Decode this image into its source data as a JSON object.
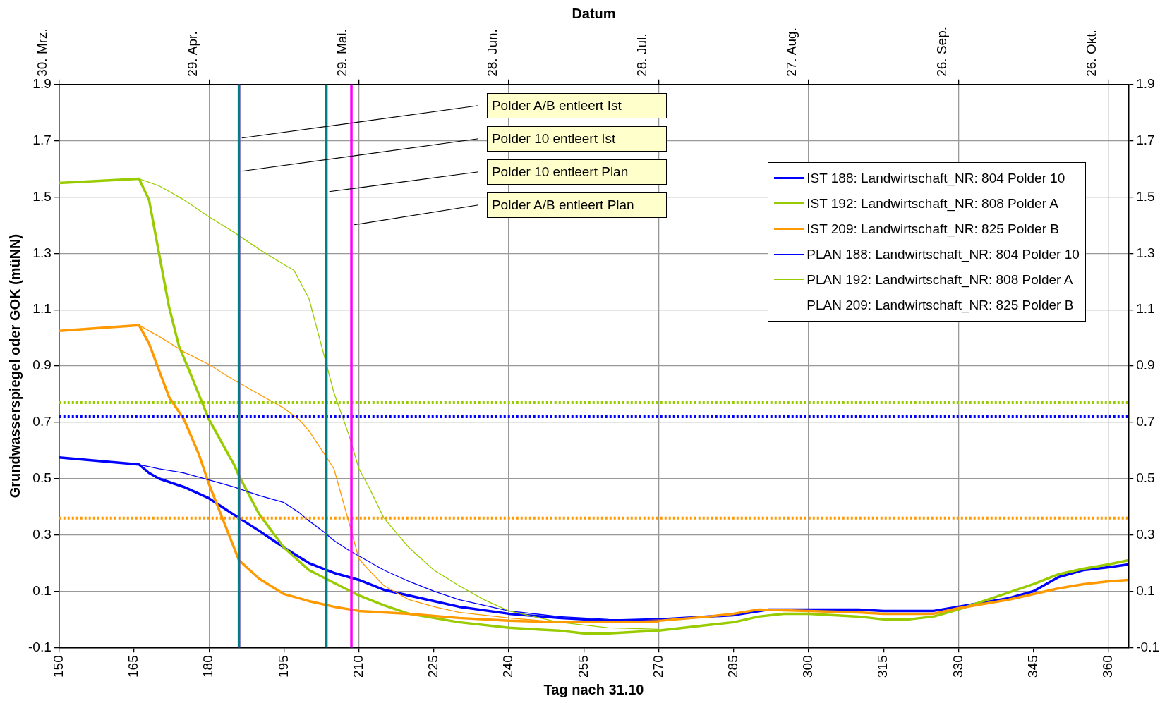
{
  "chart_data": {
    "type": "line",
    "x2label": "Datum",
    "xlabel": "Tag nach 31.10",
    "ylabel": "Grundwasserspiegel oder GOK (müNN)",
    "xlim": [
      150,
      364
    ],
    "xticks": [
      150,
      165,
      180,
      195,
      210,
      225,
      240,
      255,
      270,
      285,
      300,
      315,
      330,
      345,
      360
    ],
    "x2lim": [
      "--03-30",
      "--10-30"
    ],
    "x2ticks": [
      {
        "value": "--03-30",
        "label": "30. Mrz."
      },
      {
        "value": "--04-29",
        "label": "29. Apr."
      },
      {
        "value": "--05-29",
        "label": "29. Mai."
      },
      {
        "value": "--06-28",
        "label": "28. Jun."
      },
      {
        "value": "--07-28",
        "label": "28. Jul."
      },
      {
        "value": "--08-27",
        "label": "27. Aug."
      },
      {
        "value": "--09-26",
        "label": "26. Sep."
      },
      {
        "value": "--10-26",
        "label": "26. Okt."
      }
    ],
    "ylim": [
      -0.1,
      1.9
    ],
    "yticks": [
      -0.1,
      0.1,
      0.3,
      0.5,
      0.7,
      0.9,
      1.1,
      1.3,
      1.5,
      1.7,
      1.9
    ],
    "y2lim": [
      -0.1,
      1.9
    ],
    "y2ticks": [
      -0.1,
      0.1,
      0.3,
      0.5,
      0.7,
      0.9,
      1.1,
      1.3,
      1.5,
      1.7,
      1.9
    ],
    "grid": true,
    "legend": "top right",
    "line_style": "solid",
    "marker": "none",
    "series": [
      {
        "name": "IST 188: Landwirtschaft_NR: 804 Polder 10",
        "color": "#0000ff",
        "x": [
          150,
          166,
          168,
          170,
          175,
          180,
          183,
          186,
          190,
          195,
          200,
          205,
          210,
          215,
          220,
          225,
          230,
          240,
          250,
          255,
          260,
          270,
          285,
          292,
          300,
          310,
          315,
          325,
          330,
          340,
          345,
          350,
          355,
          360,
          364
        ],
        "values": [
          0.575,
          0.55,
          0.52,
          0.5,
          0.47,
          0.43,
          0.395,
          0.36,
          0.315,
          0.255,
          0.2,
          0.165,
          0.14,
          0.105,
          0.085,
          0.065,
          0.045,
          0.02,
          0.005,
          0,
          -0.005,
          0,
          0.015,
          0.035,
          0.035,
          0.035,
          0.03,
          0.03,
          0.045,
          0.075,
          0.1,
          0.15,
          0.175,
          0.185,
          0.195
        ]
      },
      {
        "name": "IST 192: Landwirtschaft_NR: 808 Polder A",
        "color": "#99cc00",
        "x": [
          150,
          166,
          168,
          170,
          172,
          174,
          176,
          180,
          185,
          186,
          190,
          195,
          200,
          205,
          210,
          215,
          220,
          225,
          230,
          240,
          250,
          255,
          260,
          270,
          280,
          285,
          290,
          295,
          300,
          310,
          315,
          320,
          325,
          330,
          335,
          340,
          345,
          350,
          355,
          360,
          364
        ],
        "values": [
          1.55,
          1.565,
          1.49,
          1.3,
          1.11,
          0.97,
          0.885,
          0.71,
          0.55,
          0.51,
          0.375,
          0.255,
          0.175,
          0.13,
          0.085,
          0.05,
          0.02,
          0.005,
          -0.01,
          -0.03,
          -0.04,
          -0.05,
          -0.05,
          -0.04,
          -0.02,
          -0.01,
          0.01,
          0.02,
          0.02,
          0.01,
          0,
          0,
          0.01,
          0.035,
          0.065,
          0.095,
          0.125,
          0.16,
          0.18,
          0.195,
          0.21
        ]
      },
      {
        "name": "IST 209: Landwirtschaft_NR: 825 Polder B",
        "color": "#ff9900",
        "x": [
          150,
          166,
          168,
          170,
          172,
          175,
          178,
          180,
          183,
          185,
          186,
          190,
          195,
          200,
          205,
          210,
          220,
          230,
          240,
          250,
          260,
          270,
          280,
          285,
          290,
          300,
          310,
          315,
          325,
          330,
          340,
          345,
          350,
          355,
          360,
          364
        ],
        "values": [
          1.025,
          1.045,
          0.98,
          0.885,
          0.79,
          0.71,
          0.585,
          0.48,
          0.345,
          0.255,
          0.21,
          0.145,
          0.09,
          0.065,
          0.045,
          0.03,
          0.02,
          0.005,
          -0.005,
          -0.01,
          -0.01,
          -0.005,
          0.01,
          0.02,
          0.035,
          0.03,
          0.025,
          0.02,
          0.02,
          0.04,
          0.07,
          0.09,
          0.11,
          0.125,
          0.135,
          0.14
        ]
      },
      {
        "name": "PLAN 188: Landwirtschaft_NR: 804 Polder 10",
        "color": "#0000ff",
        "x": [
          166,
          170,
          175,
          180,
          185,
          190,
          195,
          198,
          200,
          203,
          205,
          208,
          210,
          215,
          220,
          225,
          230,
          240,
          250,
          260,
          270
        ],
        "values": [
          0.55,
          0.535,
          0.52,
          0.495,
          0.47,
          0.44,
          0.415,
          0.38,
          0.35,
          0.31,
          0.28,
          0.245,
          0.225,
          0.175,
          0.135,
          0.1,
          0.07,
          0.03,
          0.01,
          0,
          -0.005
        ]
      },
      {
        "name": "PLAN 192: Landwirtschaft_NR: 808 Polder A",
        "color": "#99cc00",
        "x": [
          166,
          170,
          175,
          180,
          185,
          190,
          195,
          197,
          200,
          203,
          205,
          208,
          210,
          212,
          215,
          220,
          225,
          230,
          235,
          240,
          250,
          260,
          270
        ],
        "values": [
          1.565,
          1.54,
          1.49,
          1.43,
          1.375,
          1.315,
          1.26,
          1.24,
          1.14,
          0.94,
          0.805,
          0.655,
          0.535,
          0.47,
          0.36,
          0.255,
          0.175,
          0.12,
          0.07,
          0.03,
          -0.01,
          -0.03,
          -0.035
        ]
      },
      {
        "name": "PLAN 209: Landwirtschaft_NR: 825 Polder B",
        "color": "#ff9900",
        "x": [
          166,
          170,
          175,
          180,
          185,
          190,
          195,
          198,
          200,
          203,
          205,
          208,
          210,
          212,
          215,
          220,
          225,
          230,
          240,
          250,
          260,
          270
        ],
        "values": [
          1.045,
          1.005,
          0.95,
          0.905,
          0.85,
          0.8,
          0.75,
          0.71,
          0.67,
          0.59,
          0.535,
          0.345,
          0.215,
          0.175,
          0.12,
          0.07,
          0.045,
          0.025,
          0.005,
          -0.01,
          -0.01,
          -0.01
        ]
      }
    ],
    "ref_lines": [
      {
        "axis": "y",
        "value": 0.77,
        "color": "#99cc00",
        "line_style": "dotted"
      },
      {
        "axis": "y",
        "value": 0.72,
        "color": "#0000ff",
        "line_style": "dotted"
      },
      {
        "axis": "y",
        "value": 0.36,
        "color": "#ff9900",
        "line_style": "dotted"
      },
      {
        "axis": "x",
        "value": 186,
        "label": "Polder A/B entleert Ist",
        "color": "#ff00ff",
        "line_style": "solid"
      },
      {
        "axis": "x",
        "value": 186,
        "label": "Polder 10 entleert Ist",
        "color": "#008080",
        "line_style": "solid"
      },
      {
        "axis": "x",
        "value": 203.5,
        "label": "Polder 10 entleert Plan",
        "color": "#008080",
        "line_style": "solid"
      },
      {
        "axis": "x",
        "value": 208.5,
        "label": "Polder A/B entleert Plan",
        "color": "#ff00ff",
        "line_style": "solid"
      }
    ]
  }
}
